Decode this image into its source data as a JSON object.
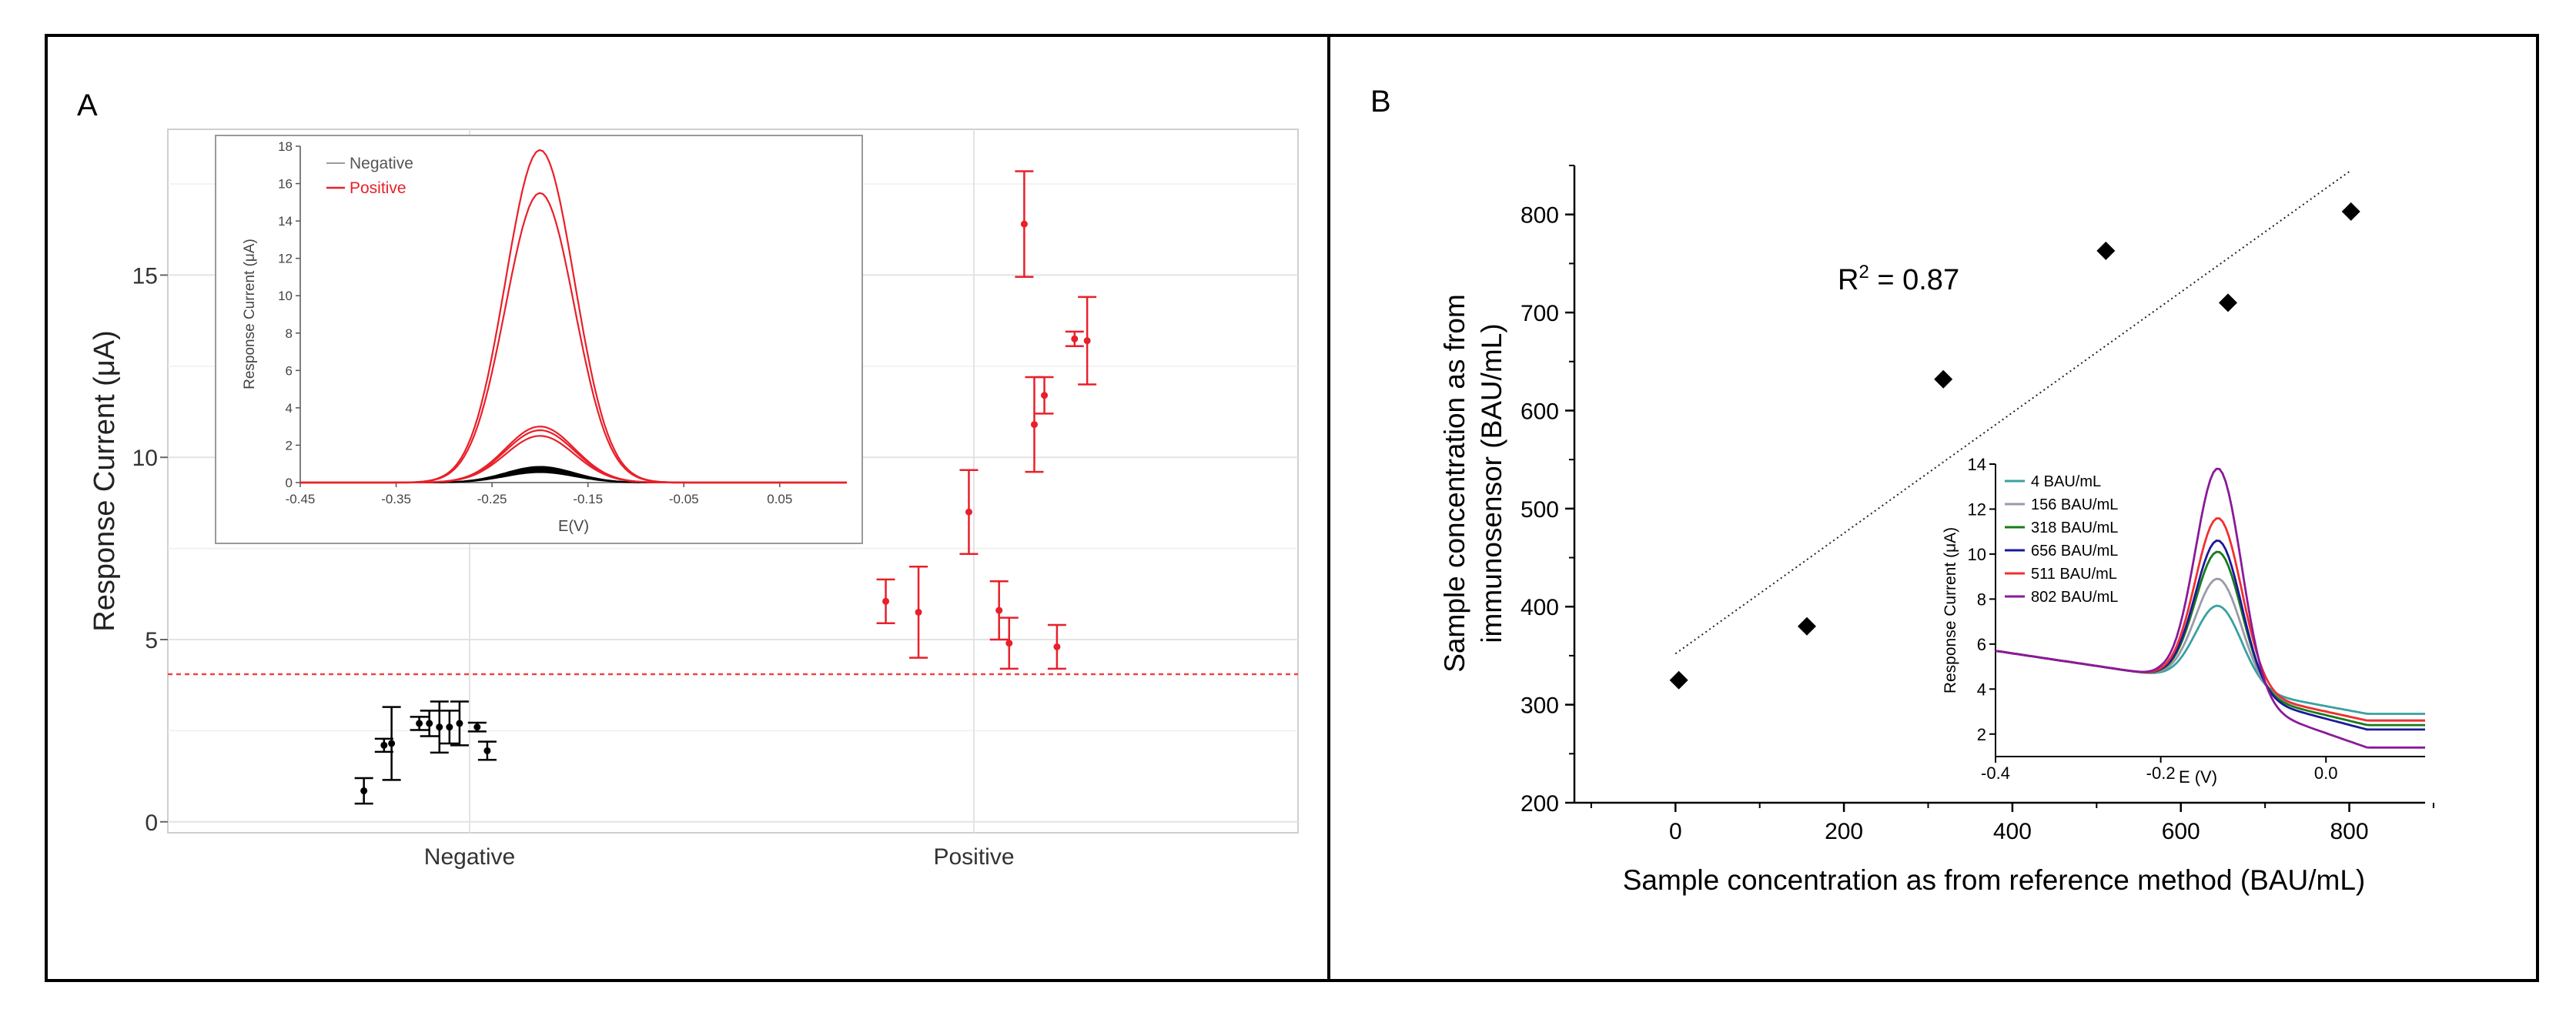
{
  "panel_a": {
    "label": "A",
    "chart_data": {
      "type": "scatter",
      "ylabel": "Response Current (μA)",
      "categories": [
        "Negative",
        "Positive"
      ],
      "ylim": [
        -0.3,
        19
      ],
      "yticks": [
        0,
        5,
        10,
        15
      ],
      "threshold": 4.05,
      "series": [
        {
          "name": "Negative",
          "color": "#000000",
          "points": [
            {
              "x": -0.42,
              "y": 0.85,
              "err": 0.35
            },
            {
              "x": -0.34,
              "y": 2.1,
              "err": 0.18
            },
            {
              "x": -0.31,
              "y": 2.15,
              "err": 1.0
            },
            {
              "x": -0.2,
              "y": 2.7,
              "err": 0.18
            },
            {
              "x": -0.16,
              "y": 2.7,
              "err": 0.35
            },
            {
              "x": -0.12,
              "y": 2.6,
              "err": 0.7
            },
            {
              "x": -0.08,
              "y": 2.6,
              "err": 0.45
            },
            {
              "x": -0.04,
              "y": 2.7,
              "err": 0.6
            },
            {
              "x": 0.03,
              "y": 2.6,
              "err": 0.12
            },
            {
              "x": 0.07,
              "y": 1.95,
              "err": 0.25
            }
          ]
        },
        {
          "name": "Positive",
          "color": "#e8202a",
          "points": [
            {
              "x": -0.35,
              "y": 6.05,
              "err": 0.6
            },
            {
              "x": -0.22,
              "y": 5.75,
              "err": 1.25
            },
            {
              "x": -0.02,
              "y": 8.5,
              "err": 1.15
            },
            {
              "x": 0.1,
              "y": 5.8,
              "err": 0.8
            },
            {
              "x": 0.14,
              "y": 4.9,
              "err": 0.7
            },
            {
              "x": 0.2,
              "y": 16.4,
              "err": 1.45
            },
            {
              "x": 0.24,
              "y": 10.9,
              "err": 1.3
            },
            {
              "x": 0.28,
              "y": 11.7,
              "err": 0.5
            },
            {
              "x": 0.33,
              "y": 4.8,
              "err": 0.6
            },
            {
              "x": 0.4,
              "y": 13.25,
              "err": 0.2
            },
            {
              "x": 0.45,
              "y": 13.2,
              "err": 1.2
            }
          ]
        }
      ]
    },
    "inset": {
      "chart_data": {
        "type": "line",
        "xlabel": "E(V)",
        "ylabel": "Response Current (μA)",
        "xlim": [
          -0.45,
          0.12
        ],
        "ylim": [
          0,
          18
        ],
        "xticks": [
          "-0.45",
          "-0.35",
          "-0.25",
          "-0.15",
          "-0.05",
          "0.05"
        ],
        "yticks": [
          "0",
          "2",
          "4",
          "6",
          "8",
          "10",
          "12",
          "14",
          "16",
          "18"
        ],
        "peak_center": -0.2,
        "peak_sigma": 0.036,
        "series": [
          {
            "name": "Negative",
            "color": "#000000",
            "peaks": [
              0.55,
              0.6,
              0.65,
              0.7,
              0.75,
              0.8,
              0.85
            ]
          },
          {
            "name": "Positive",
            "color": "#e8202a",
            "peaks": [
              17.8,
              15.5,
              3.0,
              2.8,
              2.5
            ]
          }
        ],
        "legend": [
          "Negative",
          "Positive"
        ]
      }
    }
  },
  "panel_b": {
    "label": "B",
    "chart_data": {
      "type": "scatter",
      "xlabel": "Sample concentration as from reference method (BAU/mL)",
      "ylabel_line1": "Sample concentration as from",
      "ylabel_line2": "immunosensor (BAU/mL)",
      "xlim": [
        -120,
        890
      ],
      "ylim": [
        200,
        850
      ],
      "xticks": [
        0,
        200,
        400,
        600,
        800
      ],
      "yticks": [
        200,
        300,
        400,
        500,
        600,
        700,
        800
      ],
      "points": [
        {
          "x": 4,
          "y": 325
        },
        {
          "x": 156,
          "y": 380
        },
        {
          "x": 318,
          "y": 632
        },
        {
          "x": 511,
          "y": 763
        },
        {
          "x": 656,
          "y": 710
        },
        {
          "x": 802,
          "y": 803
        }
      ],
      "trendline": {
        "x": [
          0,
          802
        ],
        "y": [
          352,
          845
        ]
      },
      "r2_prefix": "R",
      "r2_sup": "2",
      "r2_suffix": " = 0.87"
    },
    "inset": {
      "chart_data": {
        "type": "line",
        "xlabel": "E (V)",
        "ylabel": "Response Current (μA)",
        "xlim": [
          -0.4,
          0.12
        ],
        "ylim": [
          1,
          14
        ],
        "xticks": [
          -0.4,
          -0.2,
          0.0
        ],
        "xtick_labels": [
          "-0.4",
          "-0.2",
          "0.0"
        ],
        "yticks": [
          2,
          4,
          6,
          8,
          10,
          12,
          14
        ],
        "series": [
          {
            "name": "4 BAU/mL",
            "color": "#3aa0a0",
            "peak": 7.7,
            "tail": 2.9
          },
          {
            "name": "156 BAU/mL",
            "color": "#9a9aa8",
            "peak": 8.9,
            "tail": 2.6
          },
          {
            "name": "318 BAU/mL",
            "color": "#1a7a1a",
            "peak": 10.1,
            "tail": 2.4
          },
          {
            "name": "656 BAU/mL",
            "color": "#1a1a9a",
            "peak": 10.6,
            "tail": 2.2
          },
          {
            "name": "511 BAU/mL",
            "color": "#f03030",
            "peak": 11.6,
            "tail": 2.6
          },
          {
            "name": "802 BAU/mL",
            "color": "#8a1a9a",
            "peak": 13.8,
            "tail": 1.4
          }
        ]
      }
    }
  }
}
